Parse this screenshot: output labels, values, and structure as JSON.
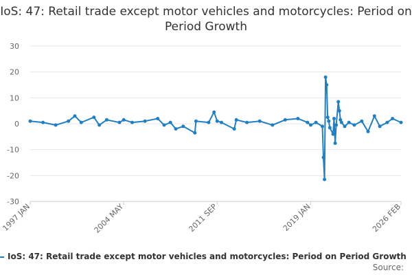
{
  "chart_data": {
    "type": "line",
    "title": "IoS: 47: Retail trade except motor vehicles and motorcycles: Period on Period Growth",
    "ylim": [
      -30,
      30
    ],
    "yticks": [
      30,
      20,
      10,
      0,
      -10,
      -20,
      -30
    ],
    "xticks": [
      "1997 JAN",
      "2004 MAY",
      "2011 SEP",
      "2019 JAN",
      "2026 FEB"
    ],
    "grid": true,
    "legend_position": "bottom",
    "colors": {
      "series": "#1f7fc4",
      "grid": "#e6e6e6",
      "axis": "#cccccc"
    },
    "series": [
      {
        "name": "IoS: 47: Retail trade except motor vehicles and motorcycles: Period on Period Growth",
        "x": [
          "1997 JAN",
          "1998 JAN",
          "1999 JAN",
          "2000 JAN",
          "2000 JUL",
          "2001 JAN",
          "2002 JAN",
          "2002 JUN",
          "2003 JAN",
          "2004 JAN",
          "2004 MAY",
          "2005 JAN",
          "2006 JAN",
          "2007 JAN",
          "2007 JUL",
          "2008 JAN",
          "2008 JUN",
          "2009 JAN",
          "2009 DEC",
          "2010 JAN",
          "2011 JAN",
          "2011 JUN",
          "2011 SEP",
          "2012 JAN",
          "2013 JAN",
          "2013 MAR",
          "2014 JAN",
          "2015 JAN",
          "2016 JAN",
          "2017 JAN",
          "2018 JAN",
          "2018 OCT",
          "2019 JAN",
          "2019 JUN",
          "2019 DEC",
          "2020 JAN",
          "2020 FEB",
          "2020 MAR",
          "2020 APR",
          "2020 MAY",
          "2020 JUN",
          "2020 JUL",
          "2020 OCT",
          "2020 NOV",
          "2020 DEC",
          "2021 JAN",
          "2021 MAR",
          "2021 APR",
          "2021 MAY",
          "2021 JUN",
          "2021 SEP",
          "2022 JAN",
          "2022 JUN",
          "2023 JAN",
          "2023 JUL",
          "2024 JAN",
          "2024 JUN",
          "2025 JAN",
          "2025 JUN",
          "2026 FEB"
        ],
        "values": [
          1.0,
          0.5,
          -0.5,
          1.0,
          3.0,
          0.5,
          2.5,
          -0.5,
          1.5,
          0.5,
          1.5,
          0.5,
          1.0,
          2.0,
          -0.5,
          0.5,
          -2.0,
          -1.0,
          -3.5,
          1.0,
          0.5,
          4.5,
          1.0,
          0.5,
          -2.0,
          1.5,
          0.5,
          1.0,
          -0.5,
          1.5,
          2.0,
          0.5,
          -0.5,
          0.5,
          -1.0,
          -13.0,
          -21.5,
          18.0,
          15.0,
          2.5,
          1.0,
          -1.5,
          -4.0,
          2.0,
          -7.5,
          -0.5,
          8.5,
          5.0,
          1.5,
          0.5,
          -1.0,
          0.5,
          -0.5,
          1.0,
          -3.0,
          3.0,
          -1.0,
          0.5,
          2.0,
          0.5
        ]
      }
    ]
  },
  "footer": {
    "source_label": "Source:"
  }
}
